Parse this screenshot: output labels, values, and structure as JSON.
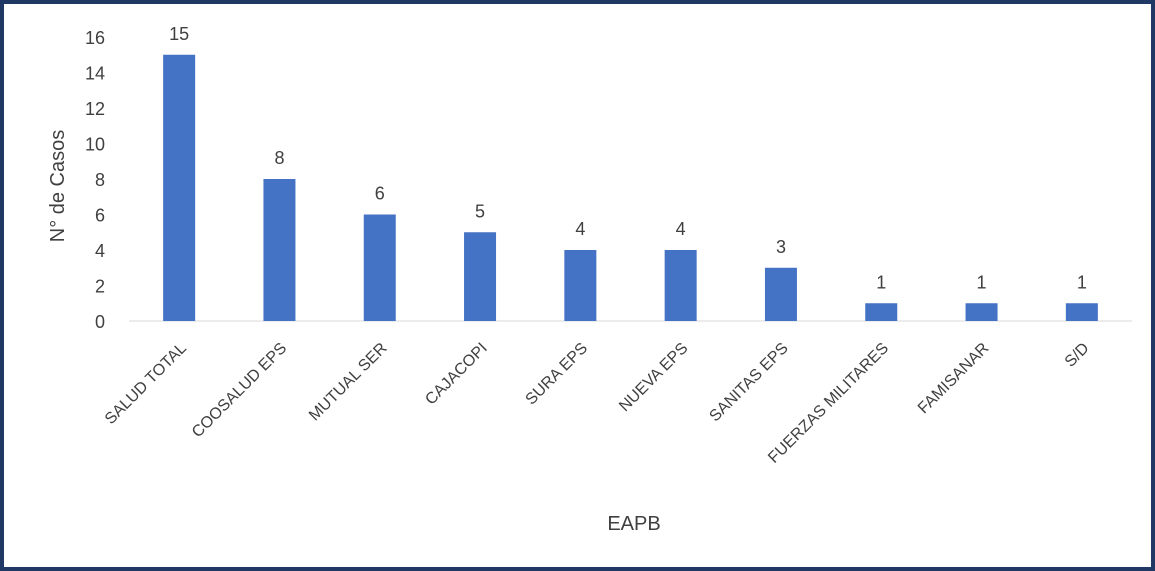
{
  "chart_data": {
    "type": "bar",
    "categories": [
      "SALUD TOTAL",
      "COOSALUD EPS",
      "MUTUAL SER",
      "CAJACOPI",
      "SURA EPS",
      "NUEVA EPS",
      "SANITAS EPS",
      "FUERZAS MILITARES",
      "FAMISANAR",
      "S/D"
    ],
    "values": [
      15,
      8,
      6,
      5,
      4,
      4,
      3,
      1,
      1,
      1
    ],
    "title": "",
    "xlabel": "EAPB",
    "ylabel": "N° de Casos",
    "ylim": [
      0,
      16
    ],
    "yticks": [
      "0",
      "2",
      "4",
      "6",
      "8",
      "10",
      "12",
      "14",
      "16"
    ],
    "grid": false,
    "legend": "none",
    "bar_color": "#4472c4",
    "border_color": "#1f3864"
  }
}
